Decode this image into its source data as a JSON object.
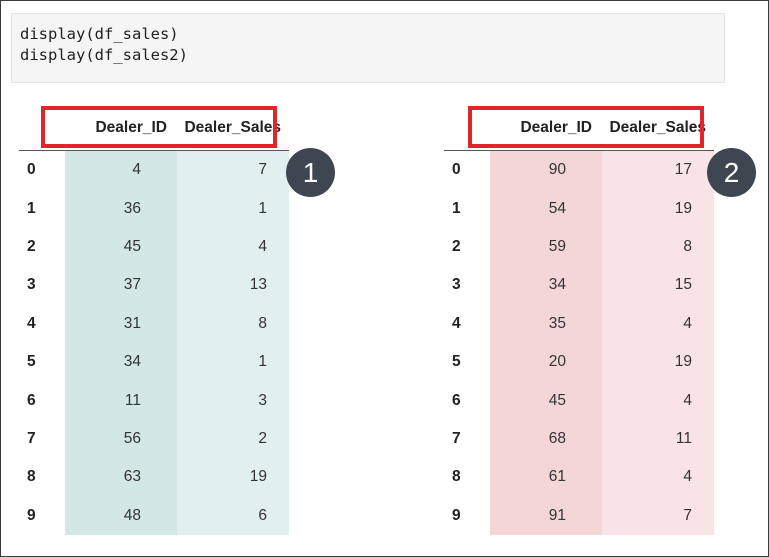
{
  "code_cell": {
    "lines": [
      "display(df_sales)",
      "display(df_sales2)"
    ]
  },
  "tables": [
    {
      "columns": [
        "Dealer_ID",
        "Dealer_Sales"
      ],
      "rows": [
        {
          "index": "0",
          "dealer_id": "4",
          "dealer_sales": "7"
        },
        {
          "index": "1",
          "dealer_id": "36",
          "dealer_sales": "1"
        },
        {
          "index": "2",
          "dealer_id": "45",
          "dealer_sales": "4"
        },
        {
          "index": "3",
          "dealer_id": "37",
          "dealer_sales": "13"
        },
        {
          "index": "4",
          "dealer_id": "31",
          "dealer_sales": "8"
        },
        {
          "index": "5",
          "dealer_id": "34",
          "dealer_sales": "1"
        },
        {
          "index": "6",
          "dealer_id": "11",
          "dealer_sales": "3"
        },
        {
          "index": "7",
          "dealer_id": "56",
          "dealer_sales": "2"
        },
        {
          "index": "8",
          "dealer_id": "63",
          "dealer_sales": "19"
        },
        {
          "index": "9",
          "dealer_id": "48",
          "dealer_sales": "6"
        }
      ],
      "accent_color": "#d3e7e5"
    },
    {
      "columns": [
        "Dealer_ID",
        "Dealer_Sales"
      ],
      "rows": [
        {
          "index": "0",
          "dealer_id": "90",
          "dealer_sales": "17"
        },
        {
          "index": "1",
          "dealer_id": "54",
          "dealer_sales": "19"
        },
        {
          "index": "2",
          "dealer_id": "59",
          "dealer_sales": "8"
        },
        {
          "index": "3",
          "dealer_id": "34",
          "dealer_sales": "15"
        },
        {
          "index": "4",
          "dealer_id": "35",
          "dealer_sales": "4"
        },
        {
          "index": "5",
          "dealer_id": "20",
          "dealer_sales": "19"
        },
        {
          "index": "6",
          "dealer_id": "45",
          "dealer_sales": "4"
        },
        {
          "index": "7",
          "dealer_id": "68",
          "dealer_sales": "11"
        },
        {
          "index": "8",
          "dealer_id": "61",
          "dealer_sales": "4"
        },
        {
          "index": "9",
          "dealer_id": "91",
          "dealer_sales": "7"
        }
      ],
      "accent_color": "#f5d6d7"
    }
  ],
  "badges": [
    "1",
    "2"
  ],
  "highlight_color": "#e0262a"
}
